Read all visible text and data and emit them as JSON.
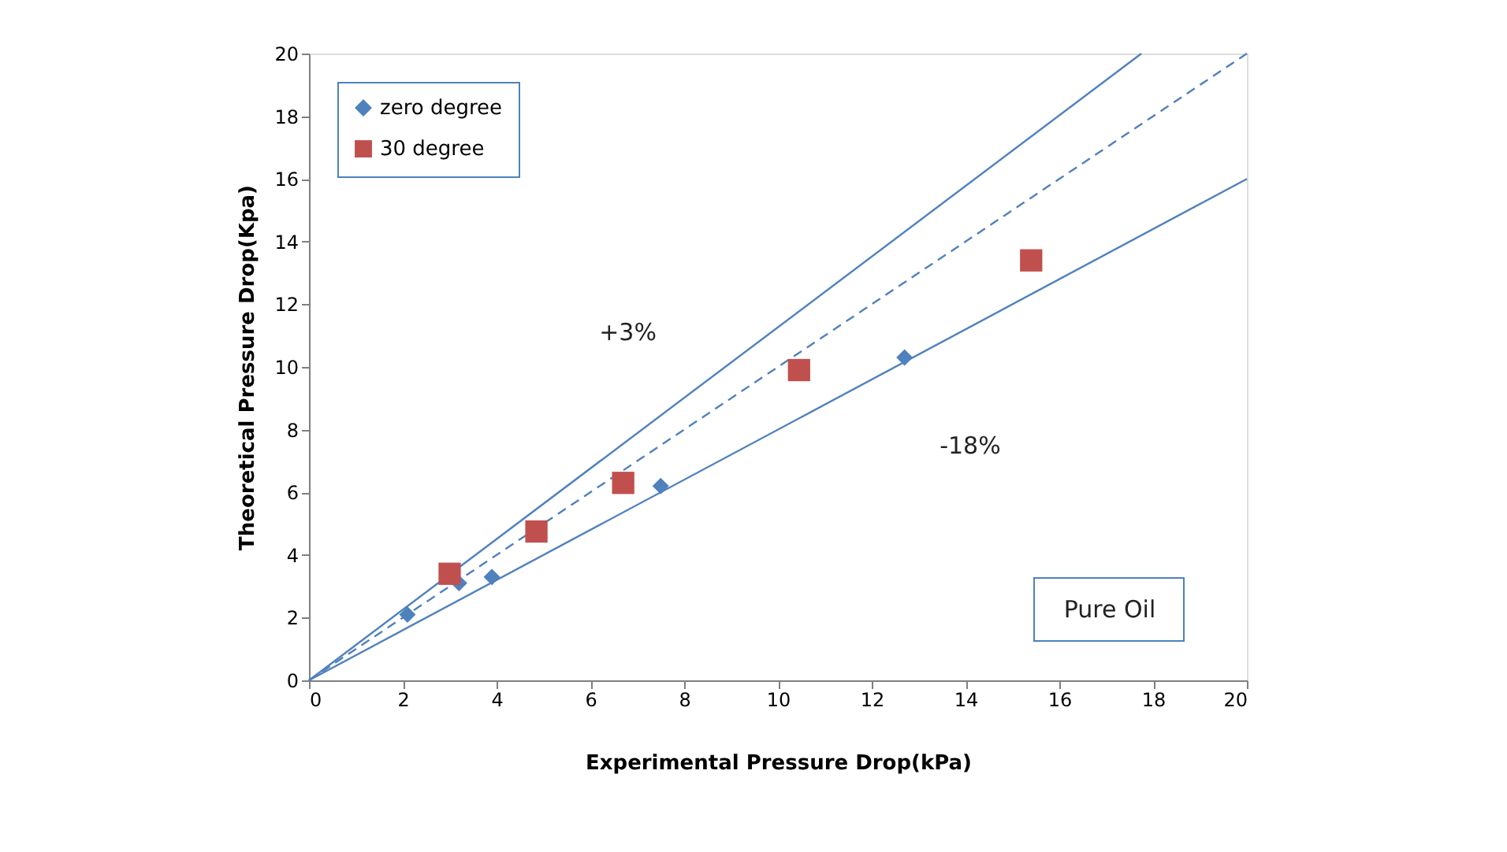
{
  "chart_data": {
    "type": "scatter",
    "xlabel": "Experimental Pressure Drop(kPa)",
    "ylabel": "Theoretical Pressure Drop(Kpa)",
    "xlim": [
      0,
      20
    ],
    "ylim": [
      0,
      20
    ],
    "xticks": [
      0,
      2,
      4,
      6,
      8,
      10,
      12,
      14,
      16,
      18,
      20
    ],
    "yticks": [
      0,
      2,
      4,
      6,
      8,
      10,
      12,
      14,
      16,
      18,
      20
    ],
    "grid": false,
    "legend": "top left",
    "series": [
      {
        "name": "zero degree",
        "color": "#4f81bd",
        "marker": "diamond",
        "x": [
          2.1,
          3.2,
          3.9,
          7.5,
          12.7
        ],
        "values": [
          2.1,
          3.1,
          3.3,
          6.2,
          10.3
        ]
      },
      {
        "name": "30 degree",
        "color": "#c0504d",
        "marker": "square",
        "x": [
          3.0,
          4.85,
          6.7,
          10.45,
          15.4
        ],
        "values": [
          3.4,
          4.75,
          6.3,
          9.9,
          13.4
        ]
      },
      {
        "type": "line",
        "color": "#4f81bd",
        "line_style": "solid",
        "marker": "none",
        "x": [
          0,
          17.75
        ],
        "values": [
          0,
          20
        ]
      },
      {
        "type": "line",
        "color": "#4f81bd",
        "line_style": "dashed",
        "marker": "none",
        "x": [
          0,
          20
        ],
        "values": [
          0,
          20
        ]
      },
      {
        "type": "line",
        "color": "#4f81bd",
        "line_style": "solid",
        "marker": "none",
        "x": [
          0,
          20
        ],
        "values": [
          0,
          16
        ]
      }
    ],
    "annotations": [
      "+3%",
      "-18%",
      "Pure Oil"
    ]
  }
}
